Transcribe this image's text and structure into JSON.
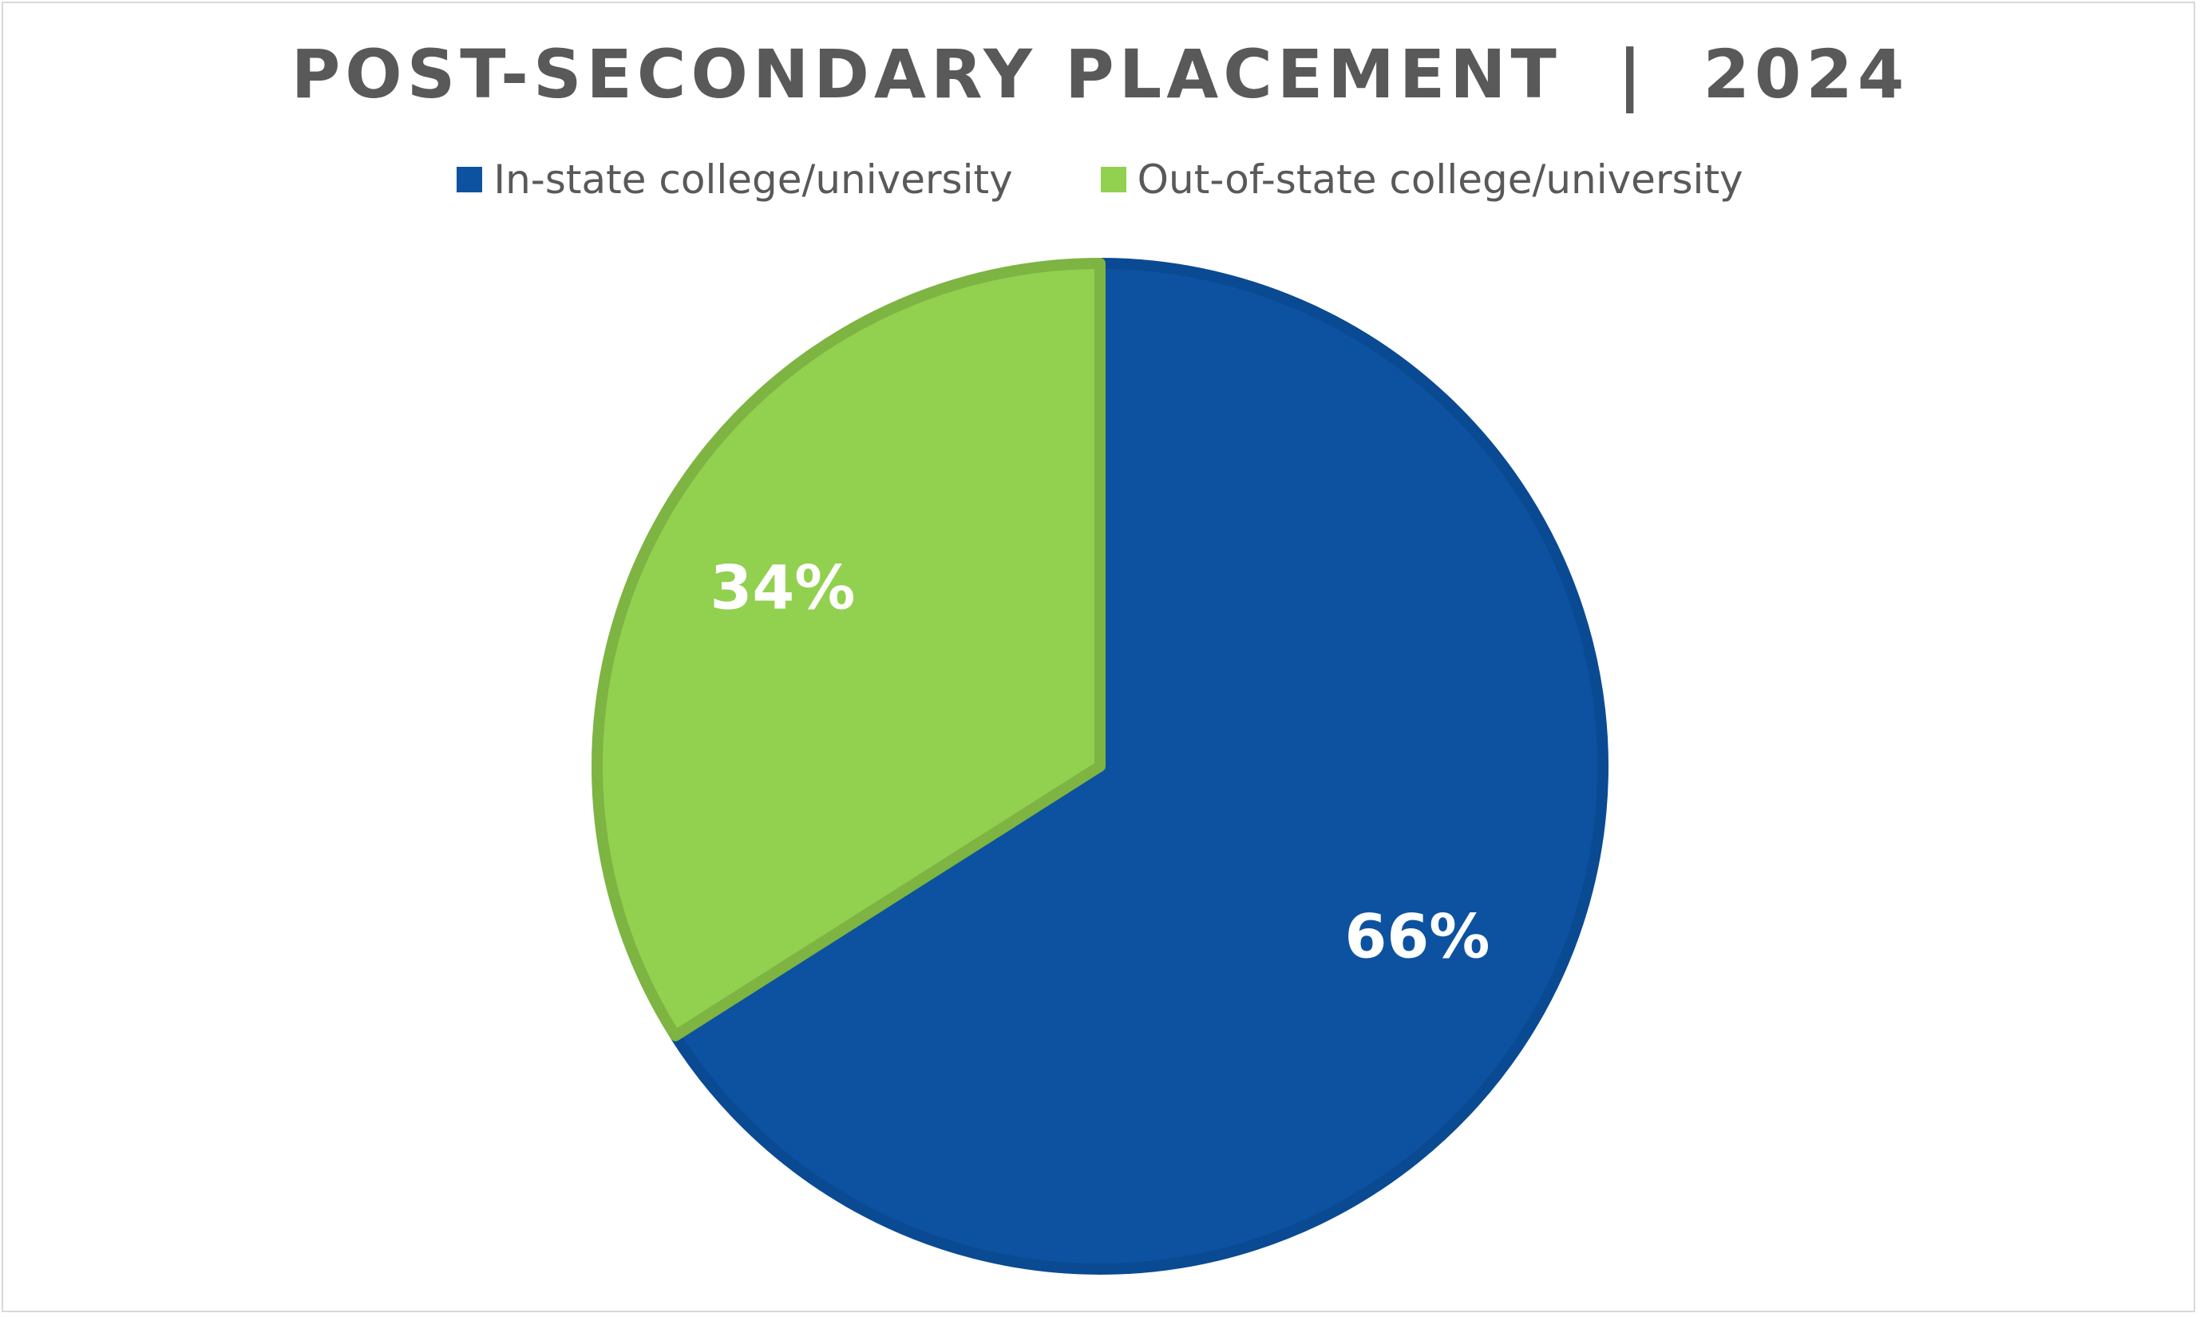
{
  "chart_data": {
    "type": "pie",
    "title": "POST-SECONDARY PLACEMENT  |  2024",
    "legend_position": "top",
    "categories": [
      "In-state college/university",
      "Out-of-state college/university"
    ],
    "values": [
      66,
      34
    ],
    "data_labels": [
      "66%",
      "34%"
    ],
    "colors": [
      "#0d52a0",
      "#92d050"
    ],
    "border_colors": [
      "#0a4a93",
      "#7db442"
    ]
  }
}
